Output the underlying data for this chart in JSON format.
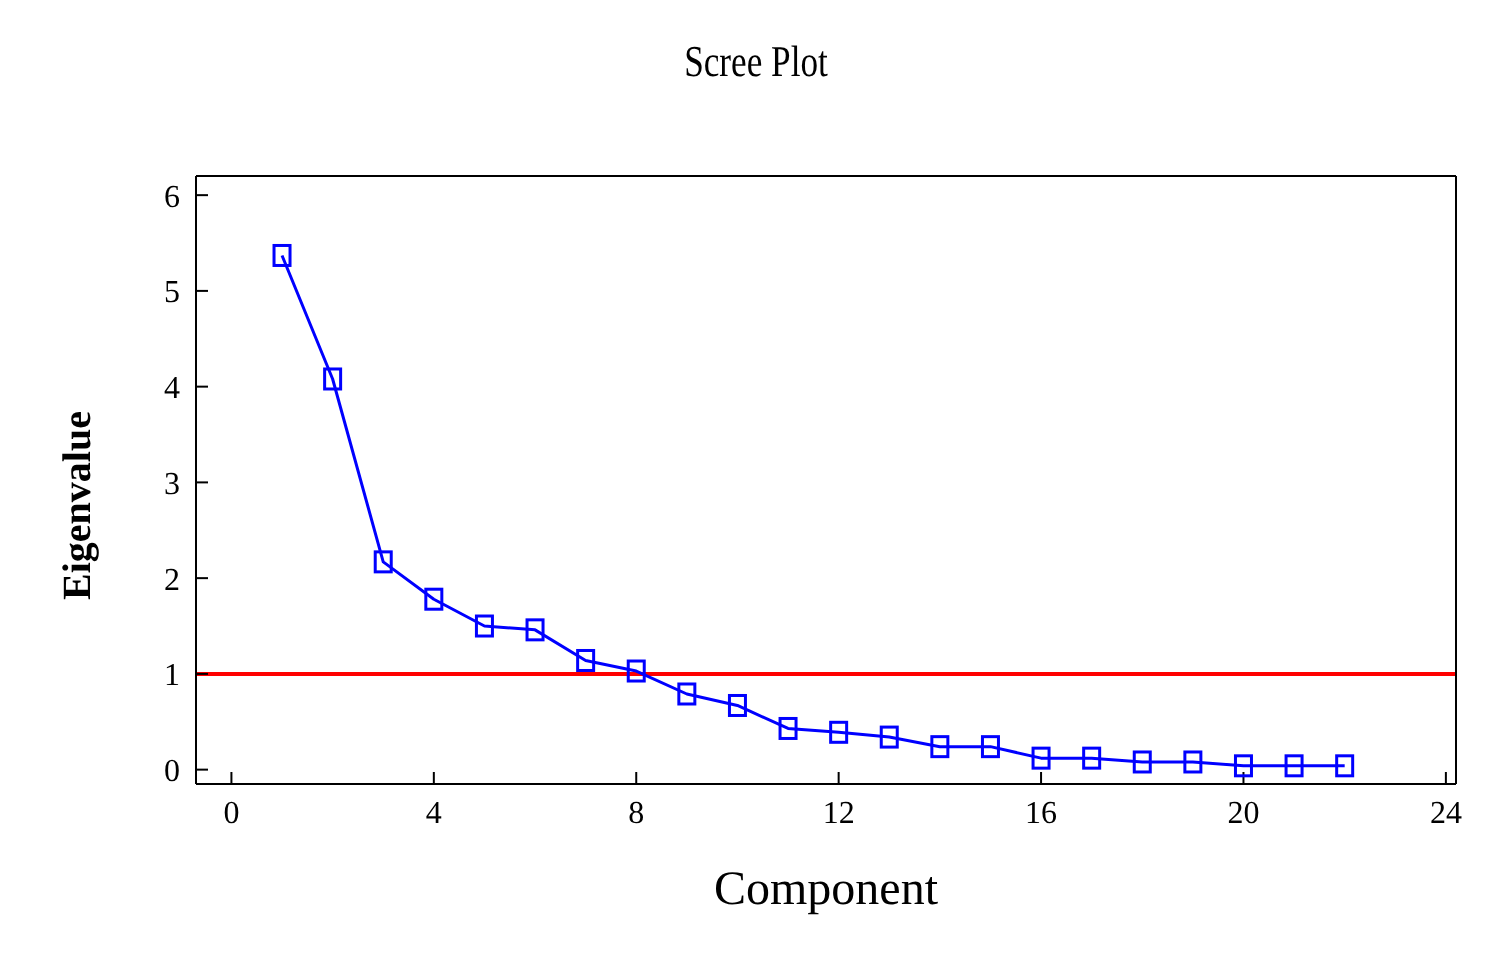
{
  "chart_data": {
    "type": "line",
    "title": "Scree Plot",
    "xlabel": "Component",
    "ylabel": "Eigenvalue",
    "x": [
      1,
      2,
      3,
      4,
      5,
      6,
      7,
      8,
      9,
      10,
      11,
      12,
      13,
      14,
      15,
      16,
      17,
      18,
      19,
      20,
      21,
      22
    ],
    "series": [
      {
        "color": "#0000ff",
        "values": [
          5.37,
          4.08,
          2.17,
          1.78,
          1.5,
          1.46,
          1.14,
          1.03,
          0.79,
          0.67,
          0.43,
          0.39,
          0.34,
          0.24,
          0.24,
          0.12,
          0.12,
          0.08,
          0.08,
          0.04,
          0.04,
          0.04
        ]
      }
    ],
    "xlim": [
      -0.7,
      24.2
    ],
    "xticks": [
      0,
      4,
      8,
      12,
      16,
      20,
      24
    ],
    "ylim": [
      -0.15,
      6.2
    ],
    "yticks": [
      0,
      1,
      2,
      3,
      4,
      5,
      6
    ],
    "ref_lines": [
      {
        "axis": "y",
        "value": 1,
        "color": "#ff0000"
      }
    ],
    "marker": "square",
    "grid": false,
    "legend": false
  }
}
